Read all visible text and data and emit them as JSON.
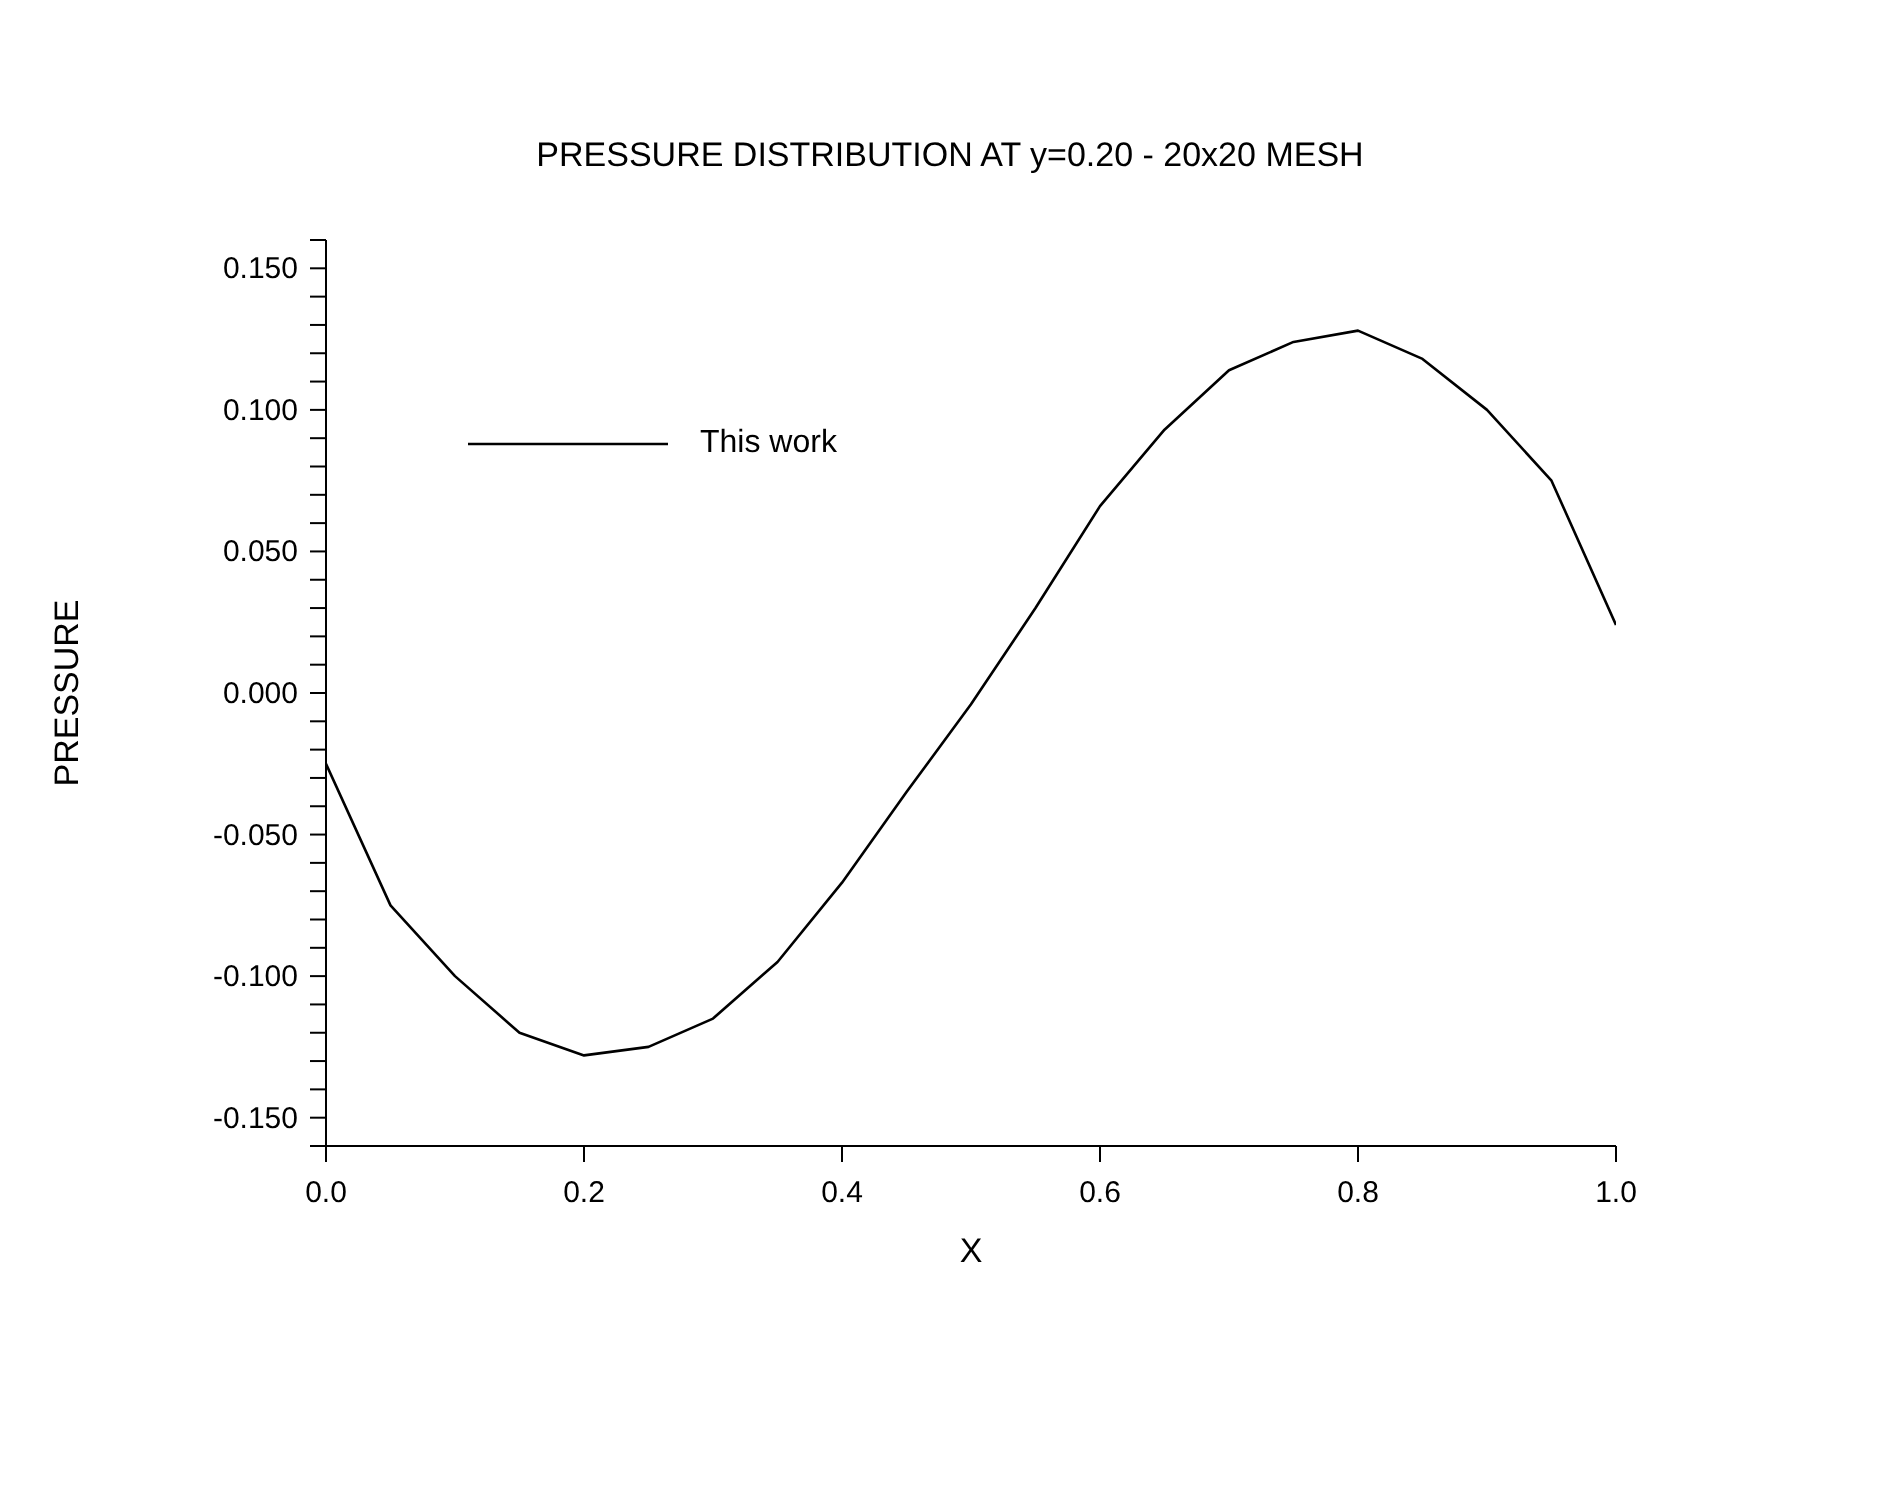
{
  "chart_data": {
    "type": "line",
    "title": "PRESSURE DISTRIBUTION AT y=0.20 - 20x20 MESH",
    "xlabel": "X",
    "ylabel": "PRESSURE",
    "x": [
      0,
      0.05,
      0.1,
      0.15,
      0.2,
      0.25,
      0.3,
      0.35,
      0.4,
      0.45,
      0.5,
      0.55,
      0.6,
      0.65,
      0.7,
      0.75,
      0.8,
      0.85,
      0.9,
      0.95,
      1.0
    ],
    "series": [
      {
        "name": "This work",
        "color": "#000000",
        "values": [
          -0.025,
          -0.075,
          -0.1,
          -0.12,
          -0.128,
          -0.125,
          -0.115,
          -0.095,
          -0.067,
          -0.035,
          -0.004,
          0.03,
          0.066,
          0.093,
          0.114,
          0.124,
          0.128,
          0.118,
          0.1,
          0.075,
          0.024
        ]
      }
    ],
    "xlim": [
      0,
      1
    ],
    "ylim": [
      -0.16,
      0.16
    ],
    "xticks": [
      {
        "value": 0,
        "label": "0.0"
      },
      {
        "value": 0.2,
        "label": "0.2"
      },
      {
        "value": 0.4,
        "label": "0.4"
      },
      {
        "value": 0.6,
        "label": "0.6"
      },
      {
        "value": 0.8,
        "label": "0.8"
      },
      {
        "value": 1,
        "label": "1.0"
      }
    ],
    "yticks": [
      {
        "value": -0.15,
        "label": "-0.150"
      },
      {
        "value": -0.1,
        "label": "-0.100"
      },
      {
        "value": -0.05,
        "label": "-0.050"
      },
      {
        "value": 0,
        "label": "0.000"
      },
      {
        "value": 0.05,
        "label": "0.050"
      },
      {
        "value": 0.1,
        "label": "0.100"
      },
      {
        "value": 0.15,
        "label": "0.150"
      },
      {
        "value": -0.16,
        "label": null
      },
      {
        "value": -0.14,
        "label": null
      },
      {
        "value": -0.13,
        "label": null
      },
      {
        "value": -0.12,
        "label": null
      },
      {
        "value": -0.11,
        "label": null
      },
      {
        "value": -0.09,
        "label": null
      },
      {
        "value": -0.08,
        "label": null
      },
      {
        "value": -0.07,
        "label": null
      },
      {
        "value": -0.06,
        "label": null
      },
      {
        "value": -0.04,
        "label": null
      },
      {
        "value": -0.03,
        "label": null
      },
      {
        "value": -0.02,
        "label": null
      },
      {
        "value": -0.01,
        "label": null
      },
      {
        "value": 0.01,
        "label": null
      },
      {
        "value": 0.02,
        "label": null
      },
      {
        "value": 0.03,
        "label": null
      },
      {
        "value": 0.04,
        "label": null
      },
      {
        "value": 0.06,
        "label": null
      },
      {
        "value": 0.07,
        "label": null
      },
      {
        "value": 0.08,
        "label": null
      },
      {
        "value": 0.09,
        "label": null
      },
      {
        "value": 0.11,
        "label": null
      },
      {
        "value": 0.12,
        "label": null
      },
      {
        "value": 0.13,
        "label": null
      },
      {
        "value": 0.14,
        "label": null
      },
      {
        "value": 0.16,
        "label": null
      }
    ],
    "grid": false,
    "legend": "top left",
    "marker": "none",
    "line_style": "solid"
  }
}
